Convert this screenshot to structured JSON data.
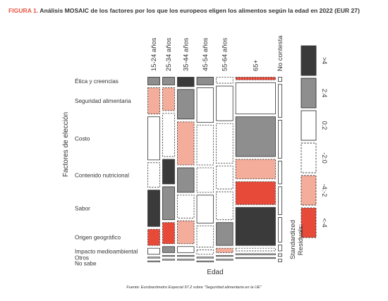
{
  "figure": {
    "label": "FIGURA 1.",
    "title": "Análisis MOSAIC de los factores por los que los europeos eligen los alimentos según la edad en 2022 (EUR 27)",
    "source": "Fuente: Eurobarómetro Especial 97.2 sobre \"Seguridad alimentaria en la UE\""
  },
  "chart_data": {
    "type": "mosaic",
    "title": "Análisis MOSAIC de los factores por los que los europeos eligen los alimentos según la edad en 2022 (EUR 27)",
    "xlabel": "Edad",
    "ylabel": "Factores de elección",
    "age_groups": [
      "15-24 años",
      "25-34 años",
      "35-44 años",
      "45-54 años",
      "55-64 años",
      "65+",
      "No contesta"
    ],
    "age_share": [
      0.104,
      0.104,
      0.142,
      0.142,
      0.142,
      0.331,
      0.035
    ],
    "factors": [
      "Ética y creencias",
      "Seguridad alimentaria",
      "Costo",
      "Contenido nutricional",
      "Sabor",
      "Origen geográfico",
      "Impacto medioambiental",
      "Otros",
      "No sabe"
    ],
    "factor_share": {
      "15-24 años": [
        0.05,
        0.16,
        0.26,
        0.15,
        0.22,
        0.1,
        0.04,
        0.01,
        0.01
      ],
      "25-34 años": [
        0.05,
        0.14,
        0.26,
        0.15,
        0.2,
        0.13,
        0.04,
        0.01,
        0.01
      ],
      "35-44 años": [
        0.06,
        0.18,
        0.26,
        0.15,
        0.14,
        0.14,
        0.04,
        0.01,
        0.01
      ],
      "45-54 años": [
        0.05,
        0.21,
        0.24,
        0.15,
        0.17,
        0.13,
        0.03,
        0.01,
        0.01
      ],
      "55-64 años": [
        0.04,
        0.21,
        0.24,
        0.14,
        0.17,
        0.14,
        0.03,
        0.01,
        0.01
      ],
      "65+": [
        0.02,
        0.19,
        0.24,
        0.12,
        0.14,
        0.23,
        0.02,
        0.01,
        0.01
      ],
      "No contesta": [
        0.03,
        0.2,
        0.23,
        0.14,
        0.17,
        0.15,
        0.04,
        0.02,
        0.02
      ]
    },
    "residual_class": {
      "15-24 años": [
        "pos_mid",
        "neg_mid",
        "pos_small",
        "neg_small",
        "pos_large",
        "neg_large",
        "pos_small",
        "neutral",
        "neutral"
      ],
      "25-34 años": [
        "pos_mid",
        "neg_mid",
        "neg_small",
        "pos_large",
        "pos_mid",
        "neg_large",
        "pos_mid",
        "neutral",
        "neutral"
      ],
      "35-44 años": [
        "pos_large",
        "pos_mid",
        "neg_mid",
        "pos_mid",
        "neg_small",
        "neg_mid",
        "pos_small",
        "neutral",
        "neutral"
      ],
      "45-54 años": [
        "pos_mid",
        "pos_small",
        "neg_small",
        "neg_small",
        "pos_small",
        "neg_small",
        "neg_small",
        "neutral",
        "neutral"
      ],
      "55-64 años": [
        "neg_small",
        "pos_small",
        "neg_small",
        "neg_small",
        "neg_small",
        "pos_mid",
        "neg_mid",
        "neutral",
        "neutral"
      ],
      "65+": [
        "neg_large",
        "pos_small",
        "pos_mid",
        "neg_mid",
        "neg_large",
        "pos_large",
        "neg_small",
        "neutral",
        "neutral"
      ],
      "No contesta": [
        "neutral",
        "neutral",
        "neutral",
        "neutral",
        "neutral",
        "neutral",
        "neutral",
        "neutral",
        "neutral"
      ]
    },
    "legend": {
      "title": "Standardized Residuals:",
      "placement": "right",
      "classes": [
        {
          "key": "pos_large",
          "label": ">4",
          "color": "#3a3a3a",
          "border": "solid"
        },
        {
          "key": "pos_mid",
          "label": "2:4",
          "color": "#8e8e8e",
          "border": "solid"
        },
        {
          "key": "pos_small",
          "label": "0:2",
          "color": "#ffffff",
          "border": "solid"
        },
        {
          "key": "neg_small",
          "label": "-2:0",
          "color": "#ffffff",
          "border": "dashed"
        },
        {
          "key": "neg_mid",
          "label": "-4:-2",
          "color": "#f4ad9a",
          "border": "dashed"
        },
        {
          "key": "neg_large",
          "label": "<-4",
          "color": "#e84a3a",
          "border": "dashed"
        }
      ],
      "neutral": {
        "color": "#ffffff",
        "border": "solid"
      }
    }
  }
}
